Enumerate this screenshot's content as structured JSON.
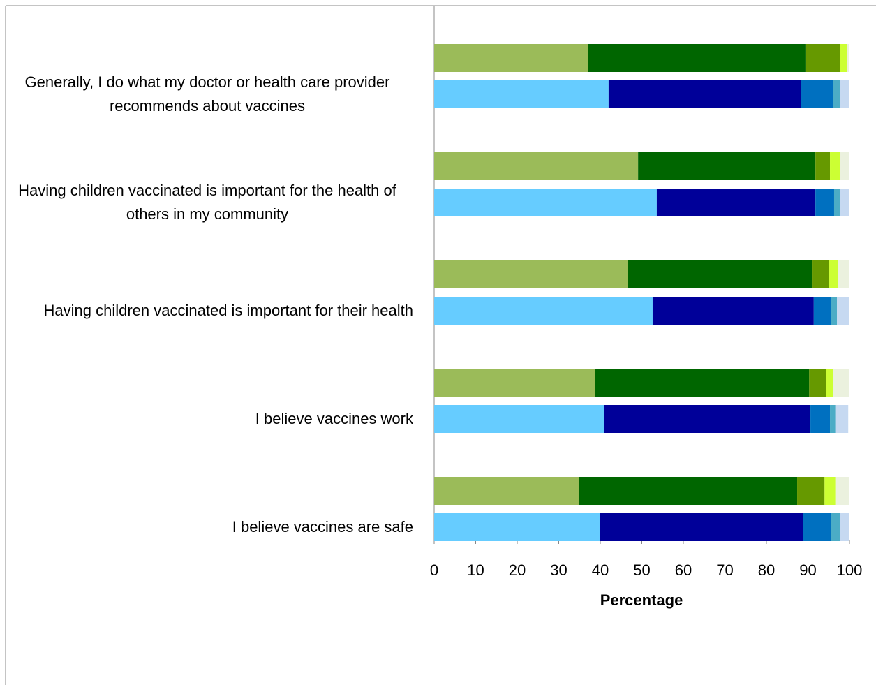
{
  "chart_data": {
    "type": "stacked-barh",
    "xlabel": "Percentage",
    "categories": [
      "Generally, I do what my doctor or health care provider recommends about vaccines",
      "Having children vaccinated is important for the health of others in my community",
      "Having children vaccinated is important for their health",
      "I believe vaccines work",
      "I believe vaccines are safe"
    ],
    "stacks": [
      {
        "series": [
          {
            "color": "#9bbb59",
            "values": [
              37.1,
              49.1,
              46.7,
              38.8,
              34.8
            ]
          },
          {
            "color": "#006600",
            "values": [
              52.3,
              42.7,
              44.4,
              51.5,
              52.6
            ]
          },
          {
            "color": "#669900",
            "values": [
              8.4,
              3.5,
              3.9,
              4.0,
              6.6
            ]
          },
          {
            "color": "#ccff33",
            "values": [
              1.7,
              2.5,
              2.3,
              1.8,
              2.6
            ]
          },
          {
            "color": "#ebf1de",
            "values": [
              0.5,
              2.2,
              2.7,
              3.9,
              3.4
            ]
          }
        ]
      },
      {
        "series": [
          {
            "color": "#66ccff",
            "values": [
              42.0,
              53.6,
              52.6,
              41.0,
              40.0
            ]
          },
          {
            "color": "#000099",
            "values": [
              46.4,
              38.2,
              38.8,
              49.6,
              48.9
            ]
          },
          {
            "color": "#0070c0",
            "values": [
              7.7,
              4.5,
              4.2,
              4.7,
              6.6
            ]
          },
          {
            "color": "#4bacc6",
            "values": [
              1.7,
              1.5,
              1.4,
              1.3,
              2.3
            ]
          },
          {
            "color": "#c6d9f1",
            "values": [
              2.2,
              2.2,
              3.0,
              3.1,
              2.2
            ]
          }
        ]
      }
    ],
    "xlim": [
      0,
      100
    ],
    "xticks": [
      0,
      10,
      20,
      30,
      40,
      50,
      60,
      70,
      80,
      90,
      100
    ]
  }
}
